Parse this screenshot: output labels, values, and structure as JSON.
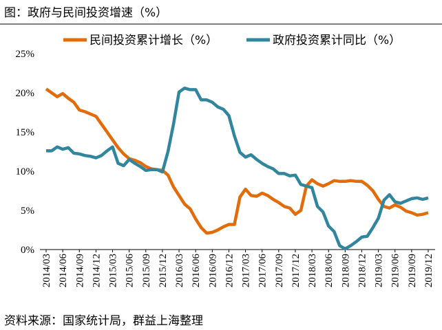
{
  "chart_data": {
    "type": "line",
    "title": "图：政府与民间投资增速（%）",
    "source": "资料来源：国家统计局，群益上海整理",
    "categories": [
      "2014/03",
      null,
      null,
      "2014/06",
      null,
      null,
      "2014/09",
      null,
      null,
      "2014/12",
      null,
      null,
      "2015/03",
      null,
      null,
      "2015/06",
      null,
      null,
      "2015/09",
      null,
      null,
      "2015/12",
      null,
      null,
      "2016/03",
      null,
      null,
      "2016/06",
      null,
      null,
      "2016/09",
      null,
      null,
      "2016/12",
      null,
      null,
      "2017/03",
      null,
      null,
      "2017/06",
      null,
      null,
      "2017/09",
      null,
      null,
      "2017/12",
      null,
      null,
      "2018/03",
      null,
      null,
      "2018/06",
      null,
      null,
      "2018/09",
      null,
      null,
      "2018/12",
      null,
      null,
      "2019/03",
      null,
      null,
      "2019/06",
      null,
      null,
      "2019/09",
      null,
      null,
      "2019/12"
    ],
    "series": [
      {
        "name": "民间投资累计增长（%）",
        "color": "#e36c0a",
        "values": [
          20.5,
          20.0,
          19.5,
          19.9,
          19.3,
          18.8,
          17.8,
          17.6,
          17.3,
          17.0,
          16.0,
          15.0,
          14.0,
          13.0,
          12.2,
          11.6,
          11.4,
          11.1,
          10.6,
          10.3,
          10.2,
          10.1,
          9.5,
          8.0,
          6.9,
          5.8,
          5.2,
          3.9,
          2.8,
          2.1,
          2.2,
          2.5,
          2.9,
          3.2,
          3.2,
          6.7,
          7.7,
          6.9,
          6.8,
          7.2,
          6.9,
          6.4,
          6.0,
          5.5,
          5.3,
          4.5,
          5.0,
          8.1,
          8.9,
          8.4,
          8.1,
          8.4,
          8.8,
          8.7,
          8.7,
          8.8,
          8.7,
          8.7,
          8.2,
          7.5,
          6.4,
          5.5,
          5.3,
          5.7,
          5.4,
          4.9,
          4.7,
          4.4,
          4.5,
          4.7
        ]
      },
      {
        "name": "政府投资累计同比（%）",
        "color": "#31859c",
        "values": [
          12.6,
          12.6,
          13.1,
          12.8,
          13.0,
          12.3,
          12.2,
          12.0,
          11.9,
          11.7,
          12.0,
          12.6,
          13.1,
          11.0,
          10.7,
          11.5,
          11.0,
          10.6,
          10.1,
          10.2,
          10.2,
          9.9,
          12.5,
          16.0,
          20.1,
          20.6,
          20.4,
          20.4,
          19.1,
          19.1,
          18.8,
          18.2,
          17.9,
          17.1,
          14.5,
          12.4,
          11.8,
          12.1,
          11.5,
          11.0,
          10.6,
          10.3,
          9.7,
          9.7,
          9.4,
          9.5,
          8.3,
          8.1,
          7.9,
          5.5,
          4.8,
          3.0,
          2.3,
          0.5,
          0.1,
          0.5,
          1.0,
          1.6,
          1.7,
          2.8,
          4.0,
          6.3,
          7.0,
          6.1,
          5.9,
          6.2,
          6.5,
          6.6,
          6.4,
          6.6
        ]
      }
    ],
    "ylim": [
      0,
      25
    ],
    "yticks": [
      {
        "value": 0,
        "label": "0%"
      },
      {
        "value": 5,
        "label": "5%"
      },
      {
        "value": 10,
        "label": "10%"
      },
      {
        "value": 15,
        "label": "15%"
      },
      {
        "value": 20,
        "label": "20%"
      },
      {
        "value": 25,
        "label": "25%"
      }
    ],
    "legend": "top"
  }
}
